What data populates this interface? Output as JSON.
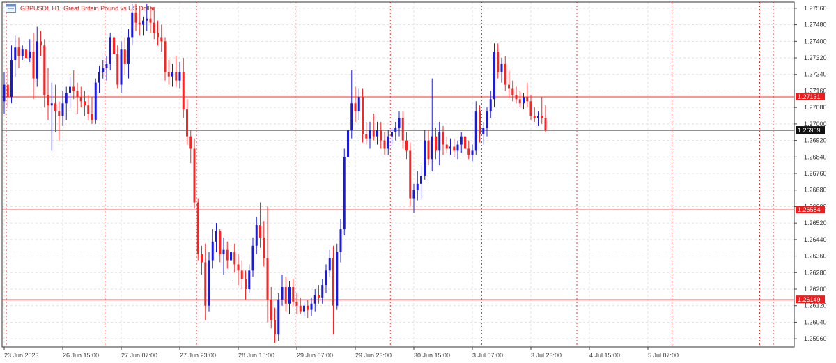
{
  "header": {
    "symbol": "GBPUSDf",
    "timeframe": "H1:",
    "description": "Great Britain Pound vs US Dollar"
  },
  "colors": {
    "bull": "#1a1adf",
    "bear": "#ff2222",
    "grid": "#e2e2e2",
    "hline": "#ff2a2a",
    "vline": "#ee3333",
    "current_line": "#555555",
    "axis_text": "#333333"
  },
  "chart_data": {
    "type": "candlestick",
    "ylim": [
      1.2592,
      1.2759
    ],
    "y_ticks": [
      "1.25960",
      "1.26040",
      "1.26120",
      "1.26200",
      "1.26280",
      "1.26360",
      "1.26440",
      "1.26520",
      "1.26600",
      "1.26680",
      "1.26760",
      "1.26840",
      "1.26920",
      "1.27000",
      "1.27080",
      "1.27160",
      "1.27240",
      "1.27320",
      "1.27400",
      "1.27480",
      "1.27560"
    ],
    "x_ticks": [
      "23 Jun 2023",
      "26 Jun 15:00",
      "27 Jun 07:00",
      "27 Jun 23:00",
      "28 Jun 15:00",
      "29 Jun 07:00",
      "29 Jun 23:00",
      "30 Jun 15:00",
      "3 Jul 07:00",
      "3 Jul 23:00",
      "4 Jul 15:00",
      "5 Jul 07:00"
    ],
    "period_separators_after_label": true,
    "horizontal_levels": [
      {
        "label": "1.27131",
        "value": 1.27131
      },
      {
        "label": "1.26584",
        "value": 1.26584
      },
      {
        "label": "1.26149",
        "value": 1.26149
      }
    ],
    "current_price": {
      "label": "1.26969",
      "value": 1.26969
    },
    "candles": [
      {
        "o": 1.2711,
        "h": 1.2725,
        "l": 1.2705,
        "c": 1.2719
      },
      {
        "o": 1.2719,
        "h": 1.2727,
        "l": 1.2708,
        "c": 1.2713
      },
      {
        "o": 1.2713,
        "h": 1.2738,
        "l": 1.271,
        "c": 1.2731
      },
      {
        "o": 1.2731,
        "h": 1.2743,
        "l": 1.2723,
        "c": 1.2737
      },
      {
        "o": 1.2737,
        "h": 1.2742,
        "l": 1.2727,
        "c": 1.2733
      },
      {
        "o": 1.2733,
        "h": 1.2738,
        "l": 1.2731,
        "c": 1.2736
      },
      {
        "o": 1.2736,
        "h": 1.274,
        "l": 1.273,
        "c": 1.2732
      },
      {
        "o": 1.2732,
        "h": 1.2741,
        "l": 1.273,
        "c": 1.2735
      },
      {
        "o": 1.2735,
        "h": 1.2744,
        "l": 1.2712,
        "c": 1.2722
      },
      {
        "o": 1.2722,
        "h": 1.2747,
        "l": 1.2718,
        "c": 1.274
      },
      {
        "o": 1.274,
        "h": 1.2745,
        "l": 1.2733,
        "c": 1.2738
      },
      {
        "o": 1.2738,
        "h": 1.2741,
        "l": 1.2708,
        "c": 1.2714
      },
      {
        "o": 1.2714,
        "h": 1.2727,
        "l": 1.2702,
        "c": 1.2709
      },
      {
        "o": 1.2709,
        "h": 1.272,
        "l": 1.2687,
        "c": 1.271
      },
      {
        "o": 1.271,
        "h": 1.2719,
        "l": 1.2696,
        "c": 1.2706
      },
      {
        "o": 1.2706,
        "h": 1.2711,
        "l": 1.2692,
        "c": 1.2704
      },
      {
        "o": 1.2704,
        "h": 1.2716,
        "l": 1.2699,
        "c": 1.271
      },
      {
        "o": 1.271,
        "h": 1.2718,
        "l": 1.2702,
        "c": 1.2715
      },
      {
        "o": 1.2715,
        "h": 1.2723,
        "l": 1.2708,
        "c": 1.2718
      },
      {
        "o": 1.2718,
        "h": 1.2726,
        "l": 1.2712,
        "c": 1.2716
      },
      {
        "o": 1.2716,
        "h": 1.272,
        "l": 1.2705,
        "c": 1.2713
      },
      {
        "o": 1.2713,
        "h": 1.2718,
        "l": 1.2708,
        "c": 1.2711
      },
      {
        "o": 1.2711,
        "h": 1.2716,
        "l": 1.2704,
        "c": 1.2709
      },
      {
        "o": 1.2709,
        "h": 1.2714,
        "l": 1.2702,
        "c": 1.2705
      },
      {
        "o": 1.2705,
        "h": 1.2713,
        "l": 1.27,
        "c": 1.2702
      },
      {
        "o": 1.2702,
        "h": 1.2722,
        "l": 1.27,
        "c": 1.272
      },
      {
        "o": 1.272,
        "h": 1.2728,
        "l": 1.2715,
        "c": 1.2725
      },
      {
        "o": 1.2725,
        "h": 1.2731,
        "l": 1.2722,
        "c": 1.2727
      },
      {
        "o": 1.2727,
        "h": 1.2733,
        "l": 1.2721,
        "c": 1.2729
      },
      {
        "o": 1.2729,
        "h": 1.2744,
        "l": 1.2726,
        "c": 1.2742
      },
      {
        "o": 1.2742,
        "h": 1.2749,
        "l": 1.2728,
        "c": 1.2734
      },
      {
        "o": 1.2734,
        "h": 1.2738,
        "l": 1.2717,
        "c": 1.2719
      },
      {
        "o": 1.2719,
        "h": 1.274,
        "l": 1.2715,
        "c": 1.2736
      },
      {
        "o": 1.2736,
        "h": 1.2742,
        "l": 1.2724,
        "c": 1.2729
      },
      {
        "o": 1.2729,
        "h": 1.2746,
        "l": 1.2722,
        "c": 1.2742
      },
      {
        "o": 1.2742,
        "h": 1.2758,
        "l": 1.2738,
        "c": 1.2754
      },
      {
        "o": 1.2754,
        "h": 1.2758,
        "l": 1.2745,
        "c": 1.2749
      },
      {
        "o": 1.2749,
        "h": 1.2755,
        "l": 1.2743,
        "c": 1.2748
      },
      {
        "o": 1.2748,
        "h": 1.2752,
        "l": 1.2743,
        "c": 1.275
      },
      {
        "o": 1.275,
        "h": 1.2758,
        "l": 1.2745,
        "c": 1.2751
      },
      {
        "o": 1.2751,
        "h": 1.2757,
        "l": 1.2744,
        "c": 1.2749
      },
      {
        "o": 1.2749,
        "h": 1.2756,
        "l": 1.2741,
        "c": 1.2744
      },
      {
        "o": 1.2744,
        "h": 1.275,
        "l": 1.2738,
        "c": 1.2742
      },
      {
        "o": 1.2742,
        "h": 1.2748,
        "l": 1.2735,
        "c": 1.274
      },
      {
        "o": 1.274,
        "h": 1.2742,
        "l": 1.2721,
        "c": 1.2725
      },
      {
        "o": 1.2725,
        "h": 1.2731,
        "l": 1.2719,
        "c": 1.2723
      },
      {
        "o": 1.2723,
        "h": 1.2729,
        "l": 1.2718,
        "c": 1.2725
      },
      {
        "o": 1.2725,
        "h": 1.2733,
        "l": 1.2718,
        "c": 1.2721
      },
      {
        "o": 1.2721,
        "h": 1.273,
        "l": 1.2717,
        "c": 1.2725
      },
      {
        "o": 1.2725,
        "h": 1.2732,
        "l": 1.2703,
        "c": 1.2707
      },
      {
        "o": 1.2707,
        "h": 1.2712,
        "l": 1.269,
        "c": 1.2694
      },
      {
        "o": 1.2694,
        "h": 1.2697,
        "l": 1.2681,
        "c": 1.2688
      },
      {
        "o": 1.2688,
        "h": 1.2693,
        "l": 1.2659,
        "c": 1.2662
      },
      {
        "o": 1.2662,
        "h": 1.2664,
        "l": 1.2634,
        "c": 1.2637
      },
      {
        "o": 1.2637,
        "h": 1.2641,
        "l": 1.2627,
        "c": 1.2633
      },
      {
        "o": 1.2633,
        "h": 1.2642,
        "l": 1.2605,
        "c": 1.2612
      },
      {
        "o": 1.2612,
        "h": 1.2638,
        "l": 1.2609,
        "c": 1.2634
      },
      {
        "o": 1.2634,
        "h": 1.2649,
        "l": 1.263,
        "c": 1.2643
      },
      {
        "o": 1.2643,
        "h": 1.2652,
        "l": 1.2638,
        "c": 1.2648
      },
      {
        "o": 1.2648,
        "h": 1.2649,
        "l": 1.2633,
        "c": 1.2637
      },
      {
        "o": 1.2637,
        "h": 1.2645,
        "l": 1.2627,
        "c": 1.2639
      },
      {
        "o": 1.2639,
        "h": 1.2643,
        "l": 1.263,
        "c": 1.2634
      },
      {
        "o": 1.2634,
        "h": 1.264,
        "l": 1.2624,
        "c": 1.2638
      },
      {
        "o": 1.2638,
        "h": 1.2642,
        "l": 1.2628,
        "c": 1.2632
      },
      {
        "o": 1.2632,
        "h": 1.2637,
        "l": 1.2622,
        "c": 1.2629
      },
      {
        "o": 1.2629,
        "h": 1.2634,
        "l": 1.262,
        "c": 1.2625
      },
      {
        "o": 1.2625,
        "h": 1.2629,
        "l": 1.2615,
        "c": 1.262
      },
      {
        "o": 1.262,
        "h": 1.2632,
        "l": 1.2618,
        "c": 1.2629
      },
      {
        "o": 1.2629,
        "h": 1.2645,
        "l": 1.2626,
        "c": 1.2641
      },
      {
        "o": 1.2641,
        "h": 1.2655,
        "l": 1.2637,
        "c": 1.2651
      },
      {
        "o": 1.2651,
        "h": 1.2662,
        "l": 1.264,
        "c": 1.2645
      },
      {
        "o": 1.2645,
        "h": 1.2653,
        "l": 1.2631,
        "c": 1.2635
      },
      {
        "o": 1.2635,
        "h": 1.266,
        "l": 1.2604,
        "c": 1.2615
      },
      {
        "o": 1.2615,
        "h": 1.2621,
        "l": 1.2601,
        "c": 1.2605
      },
      {
        "o": 1.2605,
        "h": 1.2611,
        "l": 1.2594,
        "c": 1.2598
      },
      {
        "o": 1.2598,
        "h": 1.2618,
        "l": 1.2595,
        "c": 1.2615
      },
      {
        "o": 1.2615,
        "h": 1.2627,
        "l": 1.2612,
        "c": 1.2621
      },
      {
        "o": 1.2621,
        "h": 1.2626,
        "l": 1.2609,
        "c": 1.2613
      },
      {
        "o": 1.2613,
        "h": 1.2624,
        "l": 1.2608,
        "c": 1.2621
      },
      {
        "o": 1.2621,
        "h": 1.2625,
        "l": 1.2612,
        "c": 1.2614
      },
      {
        "o": 1.2614,
        "h": 1.2618,
        "l": 1.2608,
        "c": 1.2612
      },
      {
        "o": 1.2612,
        "h": 1.2616,
        "l": 1.2608,
        "c": 1.2609
      },
      {
        "o": 1.2609,
        "h": 1.2614,
        "l": 1.2607,
        "c": 1.2612
      },
      {
        "o": 1.2612,
        "h": 1.2615,
        "l": 1.2606,
        "c": 1.261
      },
      {
        "o": 1.261,
        "h": 1.2616,
        "l": 1.2607,
        "c": 1.2613
      },
      {
        "o": 1.2613,
        "h": 1.262,
        "l": 1.2609,
        "c": 1.2617
      },
      {
        "o": 1.2617,
        "h": 1.2622,
        "l": 1.2613,
        "c": 1.2616
      },
      {
        "o": 1.2616,
        "h": 1.2625,
        "l": 1.2613,
        "c": 1.2622
      },
      {
        "o": 1.2622,
        "h": 1.2632,
        "l": 1.2618,
        "c": 1.2629
      },
      {
        "o": 1.2629,
        "h": 1.2639,
        "l": 1.2626,
        "c": 1.2635
      },
      {
        "o": 1.2635,
        "h": 1.2641,
        "l": 1.2598,
        "c": 1.2612
      },
      {
        "o": 1.2612,
        "h": 1.2642,
        "l": 1.261,
        "c": 1.2638
      },
      {
        "o": 1.2638,
        "h": 1.2654,
        "l": 1.2633,
        "c": 1.2649
      },
      {
        "o": 1.2649,
        "h": 1.2688,
        "l": 1.2646,
        "c": 1.2684
      },
      {
        "o": 1.2684,
        "h": 1.2701,
        "l": 1.2681,
        "c": 1.2697
      },
      {
        "o": 1.2697,
        "h": 1.2726,
        "l": 1.2693,
        "c": 1.271
      },
      {
        "o": 1.271,
        "h": 1.2718,
        "l": 1.2701,
        "c": 1.2706
      },
      {
        "o": 1.2706,
        "h": 1.2717,
        "l": 1.2702,
        "c": 1.2713
      },
      {
        "o": 1.2713,
        "h": 1.2717,
        "l": 1.2691,
        "c": 1.2695
      },
      {
        "o": 1.2695,
        "h": 1.2701,
        "l": 1.269,
        "c": 1.2693
      },
      {
        "o": 1.2693,
        "h": 1.2701,
        "l": 1.2688,
        "c": 1.2697
      },
      {
        "o": 1.2697,
        "h": 1.2705,
        "l": 1.2692,
        "c": 1.2694
      },
      {
        "o": 1.2694,
        "h": 1.2701,
        "l": 1.269,
        "c": 1.2697
      },
      {
        "o": 1.2697,
        "h": 1.2701,
        "l": 1.2688,
        "c": 1.2692
      },
      {
        "o": 1.2692,
        "h": 1.2696,
        "l": 1.2685,
        "c": 1.2688
      },
      {
        "o": 1.2688,
        "h": 1.2697,
        "l": 1.2685,
        "c": 1.2694
      },
      {
        "o": 1.2694,
        "h": 1.2698,
        "l": 1.269,
        "c": 1.2696
      },
      {
        "o": 1.2696,
        "h": 1.2701,
        "l": 1.2692,
        "c": 1.2698
      },
      {
        "o": 1.2698,
        "h": 1.2706,
        "l": 1.2694,
        "c": 1.2703
      },
      {
        "o": 1.2703,
        "h": 1.2706,
        "l": 1.2688,
        "c": 1.2692
      },
      {
        "o": 1.2692,
        "h": 1.2696,
        "l": 1.2683,
        "c": 1.2687
      },
      {
        "o": 1.2687,
        "h": 1.2691,
        "l": 1.266,
        "c": 1.2664
      },
      {
        "o": 1.2664,
        "h": 1.2671,
        "l": 1.2657,
        "c": 1.2668
      },
      {
        "o": 1.2668,
        "h": 1.2677,
        "l": 1.2663,
        "c": 1.2671
      },
      {
        "o": 1.2671,
        "h": 1.268,
        "l": 1.2664,
        "c": 1.2675
      },
      {
        "o": 1.2675,
        "h": 1.2697,
        "l": 1.2673,
        "c": 1.2692
      },
      {
        "o": 1.2692,
        "h": 1.2697,
        "l": 1.268,
        "c": 1.2683
      },
      {
        "o": 1.2683,
        "h": 1.2722,
        "l": 1.2677,
        "c": 1.2694
      },
      {
        "o": 1.2694,
        "h": 1.2698,
        "l": 1.2683,
        "c": 1.2687
      },
      {
        "o": 1.2687,
        "h": 1.2701,
        "l": 1.268,
        "c": 1.2696
      },
      {
        "o": 1.2696,
        "h": 1.2699,
        "l": 1.2685,
        "c": 1.269
      },
      {
        "o": 1.269,
        "h": 1.2694,
        "l": 1.2686,
        "c": 1.2688
      },
      {
        "o": 1.2688,
        "h": 1.2693,
        "l": 1.2685,
        "c": 1.2689
      },
      {
        "o": 1.2689,
        "h": 1.2693,
        "l": 1.2684,
        "c": 1.2687
      },
      {
        "o": 1.2687,
        "h": 1.2692,
        "l": 1.2683,
        "c": 1.269
      },
      {
        "o": 1.269,
        "h": 1.2696,
        "l": 1.2686,
        "c": 1.2694
      },
      {
        "o": 1.2694,
        "h": 1.2698,
        "l": 1.2686,
        "c": 1.2688
      },
      {
        "o": 1.2688,
        "h": 1.2692,
        "l": 1.2683,
        "c": 1.2685
      },
      {
        "o": 1.2685,
        "h": 1.269,
        "l": 1.2682,
        "c": 1.2687
      },
      {
        "o": 1.2687,
        "h": 1.2711,
        "l": 1.2685,
        "c": 1.2706
      },
      {
        "o": 1.2706,
        "h": 1.2709,
        "l": 1.2691,
        "c": 1.2695
      },
      {
        "o": 1.2695,
        "h": 1.2701,
        "l": 1.269,
        "c": 1.2698
      },
      {
        "o": 1.2698,
        "h": 1.2708,
        "l": 1.2694,
        "c": 1.2706
      },
      {
        "o": 1.2706,
        "h": 1.2716,
        "l": 1.2703,
        "c": 1.2712
      },
      {
        "o": 1.2712,
        "h": 1.2739,
        "l": 1.2708,
        "c": 1.2735
      },
      {
        "o": 1.2735,
        "h": 1.2739,
        "l": 1.2722,
        "c": 1.2725
      },
      {
        "o": 1.2725,
        "h": 1.2732,
        "l": 1.272,
        "c": 1.2729
      },
      {
        "o": 1.2729,
        "h": 1.2733,
        "l": 1.2716,
        "c": 1.2719
      },
      {
        "o": 1.2719,
        "h": 1.2726,
        "l": 1.2713,
        "c": 1.2717
      },
      {
        "o": 1.2717,
        "h": 1.2721,
        "l": 1.2711,
        "c": 1.2714
      },
      {
        "o": 1.2714,
        "h": 1.2718,
        "l": 1.271,
        "c": 1.2712
      },
      {
        "o": 1.2712,
        "h": 1.2716,
        "l": 1.2708,
        "c": 1.271
      },
      {
        "o": 1.271,
        "h": 1.2715,
        "l": 1.2707,
        "c": 1.2713
      },
      {
        "o": 1.2713,
        "h": 1.272,
        "l": 1.2708,
        "c": 1.2711
      },
      {
        "o": 1.2711,
        "h": 1.2714,
        "l": 1.2702,
        "c": 1.2704
      },
      {
        "o": 1.2704,
        "h": 1.2708,
        "l": 1.2701,
        "c": 1.2703
      },
      {
        "o": 1.2703,
        "h": 1.2706,
        "l": 1.2699,
        "c": 1.2704
      },
      {
        "o": 1.2704,
        "h": 1.2713,
        "l": 1.27,
        "c": 1.2703
      },
      {
        "o": 1.2703,
        "h": 1.2709,
        "l": 1.2696,
        "c": 1.2697
      }
    ]
  }
}
